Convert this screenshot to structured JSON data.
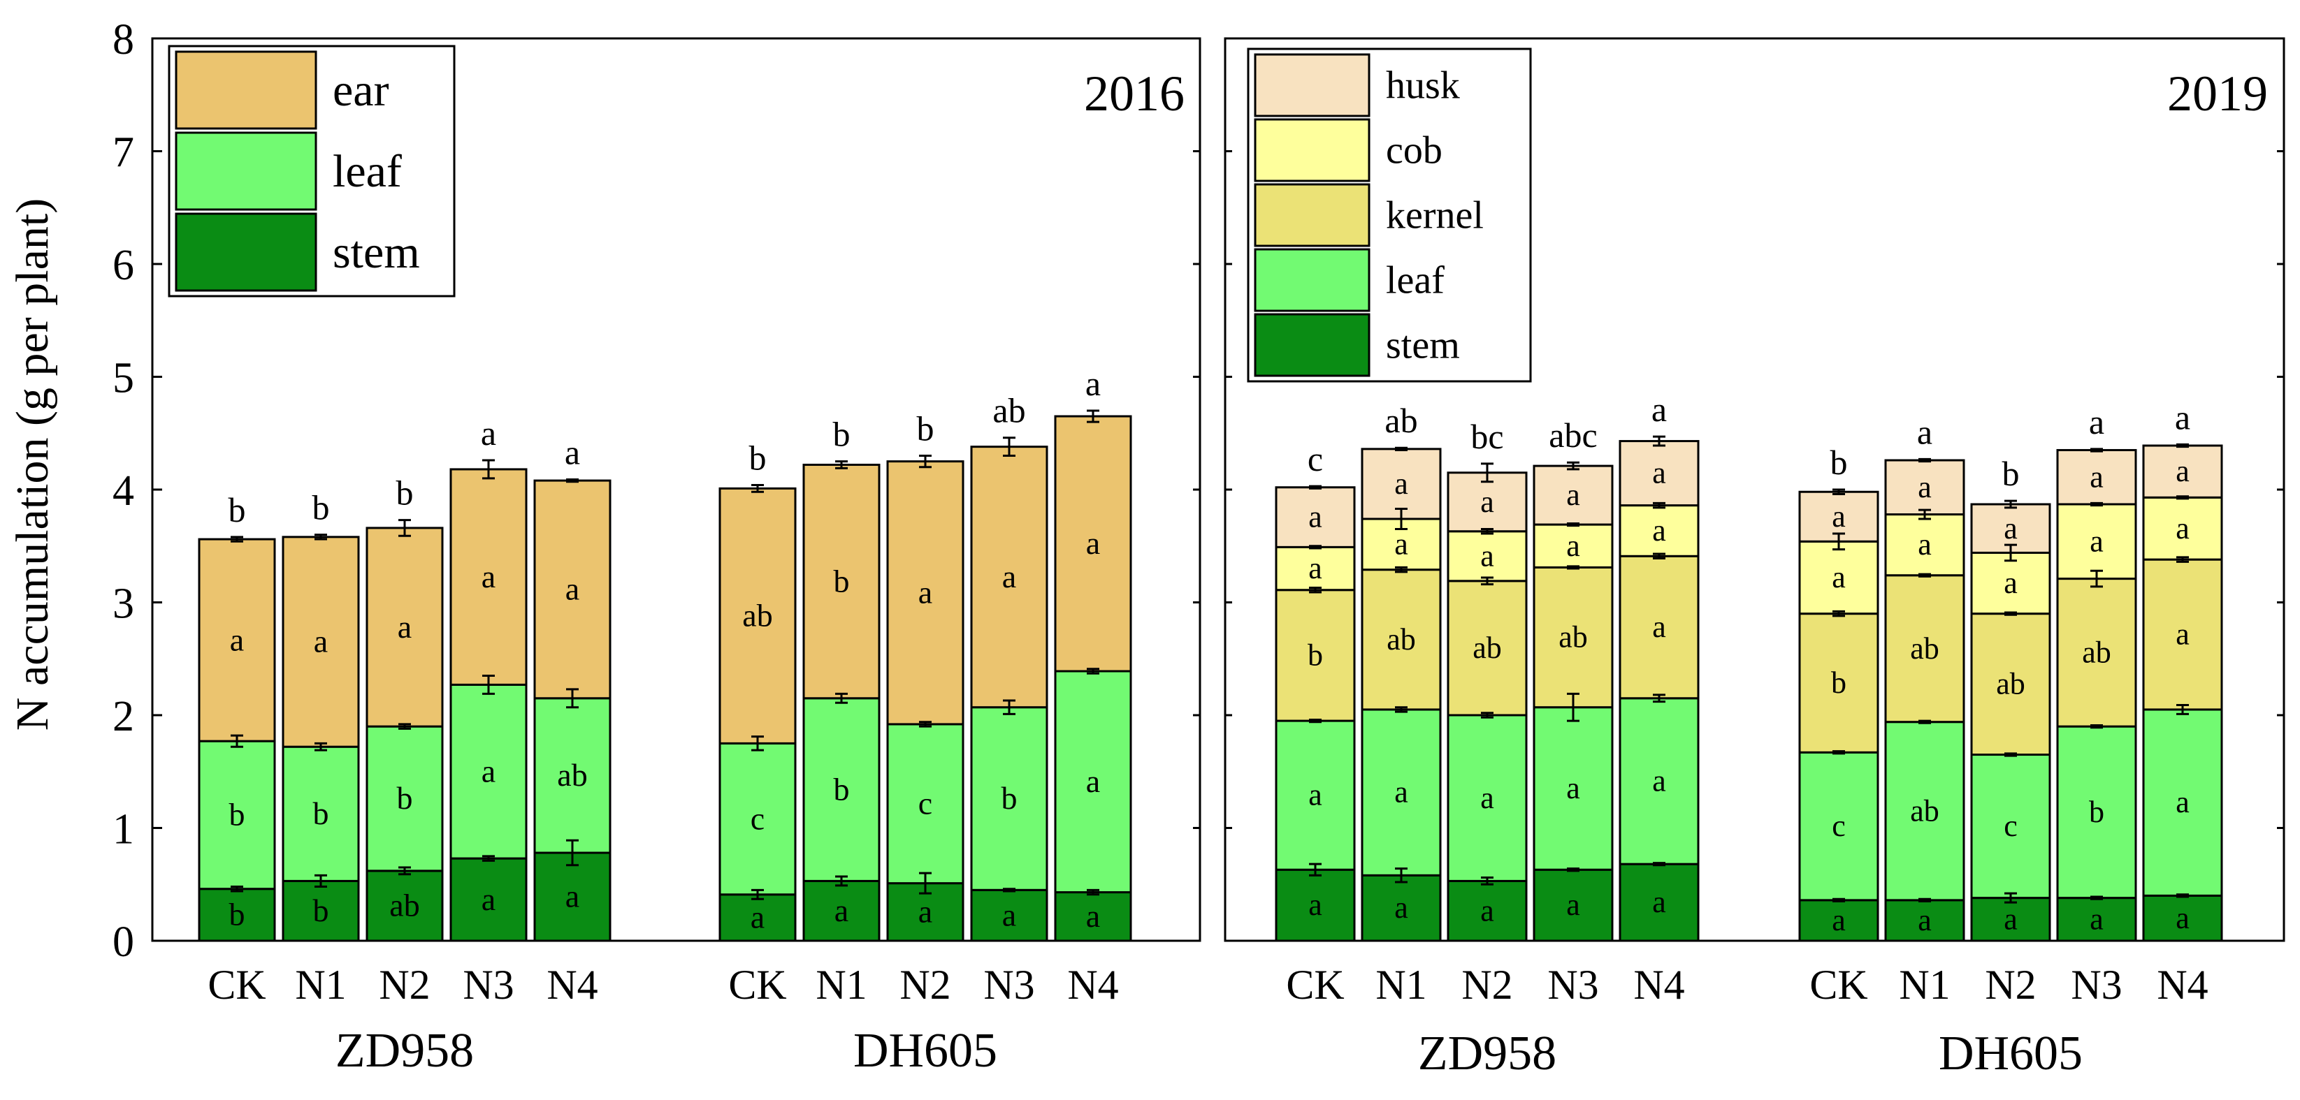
{
  "ylabel": "N accumulation (g per plant)",
  "yaxis": {
    "min": 0,
    "max": 8,
    "ticks": [
      "0",
      "1",
      "2",
      "3",
      "4",
      "5",
      "6",
      "7",
      "8"
    ]
  },
  "colors": {
    "stem": "#0a8c14",
    "leaf": "#72fa72",
    "ear": "#ebc46f",
    "kernel": "#ebe276",
    "cob": "#feff9c",
    "husk": "#f8e2c0"
  },
  "chart_data": [
    {
      "type": "bar",
      "stacked": true,
      "title": "2016",
      "ylabel": "N accumulation (g per plant)",
      "ylim": [
        0,
        8
      ],
      "legend_position": "top-left",
      "legend": [
        "ear",
        "leaf",
        "stem"
      ],
      "components": [
        "stem",
        "leaf",
        "ear"
      ],
      "groups": [
        {
          "name": "ZD958",
          "bars": [
            {
              "label": "CK",
              "values": [
                0.46,
                1.31,
                1.79
              ],
              "err": [
                0.02,
                0.05,
                0.02
              ],
              "letters": [
                "b",
                "b",
                "a"
              ],
              "top_letter": "b"
            },
            {
              "label": "N1",
              "values": [
                0.53,
                1.19,
                1.86
              ],
              "err": [
                0.05,
                0.03,
                0.02
              ],
              "letters": [
                "b",
                "b",
                "a"
              ],
              "top_letter": "b"
            },
            {
              "label": "N2",
              "values": [
                0.62,
                1.28,
                1.76
              ],
              "err": [
                0.03,
                0.02,
                0.07
              ],
              "letters": [
                "ab",
                "b",
                "a"
              ],
              "top_letter": "b"
            },
            {
              "label": "N3",
              "values": [
                0.73,
                1.54,
                1.91
              ],
              "err": [
                0.02,
                0.08,
                0.08
              ],
              "letters": [
                "a",
                "a",
                "a"
              ],
              "top_letter": "a"
            },
            {
              "label": "N4",
              "values": [
                0.78,
                1.37,
                1.93
              ],
              "err": [
                0.11,
                0.08,
                0.01
              ],
              "letters": [
                "a",
                "ab",
                "a"
              ],
              "top_letter": "a"
            }
          ]
        },
        {
          "name": "DH605",
          "bars": [
            {
              "label": "CK",
              "values": [
                0.41,
                1.34,
                2.26
              ],
              "err": [
                0.04,
                0.06,
                0.03
              ],
              "letters": [
                "a",
                "c",
                "ab"
              ],
              "top_letter": "b"
            },
            {
              "label": "N1",
              "values": [
                0.53,
                1.62,
                2.07
              ],
              "err": [
                0.04,
                0.04,
                0.03
              ],
              "letters": [
                "a",
                "b",
                "b"
              ],
              "top_letter": "b"
            },
            {
              "label": "N2",
              "values": [
                0.51,
                1.41,
                2.33
              ],
              "err": [
                0.09,
                0.02,
                0.05
              ],
              "letters": [
                "a",
                "c",
                "a"
              ],
              "top_letter": "b"
            },
            {
              "label": "N3",
              "values": [
                0.45,
                1.62,
                2.31
              ],
              "err": [
                0.01,
                0.06,
                0.08
              ],
              "letters": [
                "a",
                "b",
                "a"
              ],
              "top_letter": "ab"
            },
            {
              "label": "N4",
              "values": [
                0.43,
                1.96,
                2.26
              ],
              "err": [
                0.02,
                0.02,
                0.05
              ],
              "letters": [
                "a",
                "a",
                "a"
              ],
              "top_letter": "a"
            }
          ]
        }
      ]
    },
    {
      "type": "bar",
      "stacked": true,
      "title": "2019",
      "ylim": [
        0,
        8
      ],
      "legend_position": "top-left",
      "legend": [
        "husk",
        "cob",
        "kernel",
        "leaf",
        "stem"
      ],
      "components": [
        "stem",
        "leaf",
        "kernel",
        "cob",
        "husk"
      ],
      "groups": [
        {
          "name": "ZD958",
          "bars": [
            {
              "label": "CK",
              "values": [
                0.63,
                1.32,
                1.16,
                0.38,
                0.53
              ],
              "err": [
                0.05,
                0.01,
                0.02,
                0.01,
                0.01
              ],
              "letters": [
                "a",
                "a",
                "b",
                "a",
                "a"
              ],
              "top_letter": "c"
            },
            {
              "label": "N1",
              "values": [
                0.58,
                1.47,
                1.24,
                0.45,
                0.62
              ],
              "err": [
                0.06,
                0.02,
                0.02,
                0.09,
                0.01
              ],
              "letters": [
                "a",
                "a",
                "ab",
                "a",
                "a"
              ],
              "top_letter": "ab"
            },
            {
              "label": "N2",
              "values": [
                0.53,
                1.47,
                1.19,
                0.44,
                0.52
              ],
              "err": [
                0.03,
                0.02,
                0.03,
                0.02,
                0.08
              ],
              "letters": [
                "a",
                "a",
                "ab",
                "a",
                "a"
              ],
              "top_letter": "bc"
            },
            {
              "label": "N3",
              "values": [
                0.63,
                1.44,
                1.24,
                0.38,
                0.52
              ],
              "err": [
                0.01,
                0.12,
                0.01,
                0.01,
                0.03
              ],
              "letters": [
                "a",
                "a",
                "ab",
                "a",
                "a"
              ],
              "top_letter": "abc"
            },
            {
              "label": "N4",
              "values": [
                0.68,
                1.47,
                1.26,
                0.45,
                0.57
              ],
              "err": [
                0.01,
                0.03,
                0.02,
                0.02,
                0.04
              ],
              "letters": [
                "a",
                "a",
                "a",
                "a",
                "a"
              ],
              "top_letter": "a"
            }
          ]
        },
        {
          "name": "DH605",
          "bars": [
            {
              "label": "CK",
              "values": [
                0.36,
                1.31,
                1.23,
                0.64,
                0.44
              ],
              "err": [
                0.01,
                0.01,
                0.02,
                0.07,
                0.02
              ],
              "letters": [
                "a",
                "c",
                "b",
                "a",
                "a"
              ],
              "top_letter": "b"
            },
            {
              "label": "N1",
              "values": [
                0.36,
                1.58,
                1.3,
                0.54,
                0.48
              ],
              "err": [
                0.01,
                0.01,
                0.01,
                0.04,
                0.01
              ],
              "letters": [
                "a",
                "ab",
                "ab",
                "a",
                "a"
              ],
              "top_letter": "a"
            },
            {
              "label": "N2",
              "values": [
                0.38,
                1.27,
                1.25,
                0.54,
                0.43
              ],
              "err": [
                0.04,
                0.01,
                0.01,
                0.07,
                0.03
              ],
              "letters": [
                "a",
                "c",
                "ab",
                "a",
                "a"
              ],
              "top_letter": "b"
            },
            {
              "label": "N3",
              "values": [
                0.38,
                1.52,
                1.31,
                0.66,
                0.48
              ],
              "err": [
                0.01,
                0.01,
                0.07,
                0.01,
                0.01
              ],
              "letters": [
                "a",
                "b",
                "ab",
                "a",
                "a"
              ],
              "top_letter": "a"
            },
            {
              "label": "N4",
              "values": [
                0.4,
                1.65,
                1.33,
                0.55,
                0.46
              ],
              "err": [
                0.01,
                0.04,
                0.02,
                0.01,
                0.01
              ],
              "letters": [
                "a",
                "a",
                "a",
                "a",
                "a"
              ],
              "top_letter": "a"
            }
          ]
        }
      ]
    }
  ]
}
